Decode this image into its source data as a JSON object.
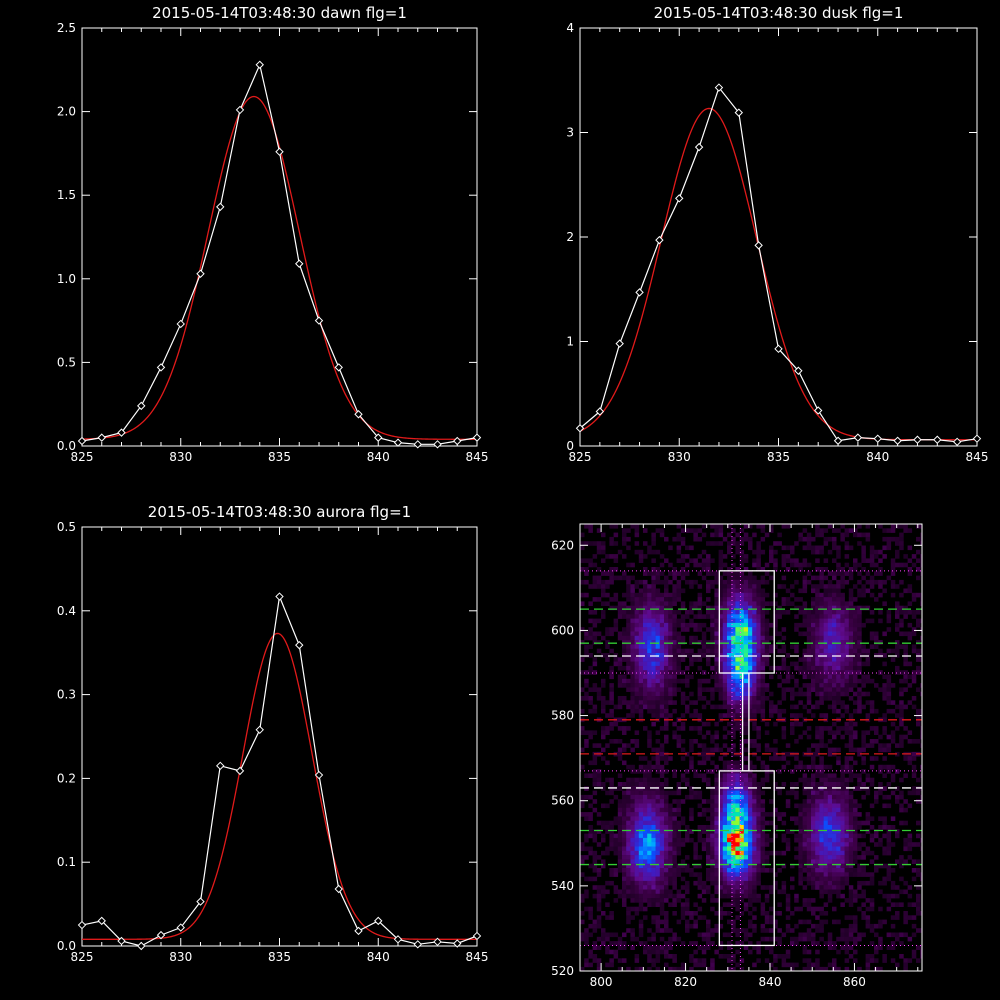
{
  "panels": [
    {
      "title": "2015-05-14T03:48:30 dawn flg=1",
      "xlim": [
        825,
        845
      ],
      "ylim": [
        0,
        2.5
      ],
      "xticks": [
        825,
        830,
        835,
        840,
        845
      ],
      "yticks": [
        0.0,
        0.5,
        1.0,
        1.5,
        2.0,
        2.5
      ],
      "ytick_labels": [
        "0.0",
        "0.5",
        "1.0",
        "1.5",
        "2.0",
        "2.5"
      ],
      "gauss": {
        "amp": 2.05,
        "center": 833.7,
        "sigma": 2.3,
        "offset": 0.04
      },
      "points": [
        [
          825,
          0.03
        ],
        [
          826,
          0.05
        ],
        [
          827,
          0.08
        ],
        [
          828,
          0.24
        ],
        [
          829,
          0.47
        ],
        [
          830,
          0.73
        ],
        [
          831,
          1.03
        ],
        [
          832,
          1.43
        ],
        [
          833,
          2.01
        ],
        [
          834,
          2.28
        ],
        [
          835,
          1.76
        ],
        [
          836,
          1.09
        ],
        [
          837,
          0.75
        ],
        [
          838,
          0.47
        ],
        [
          839,
          0.19
        ],
        [
          840,
          0.05
        ],
        [
          841,
          0.02
        ],
        [
          842,
          0.01
        ],
        [
          843,
          0.01
        ],
        [
          844,
          0.03
        ],
        [
          845,
          0.05
        ]
      ]
    },
    {
      "title": "2015-05-14T03:48:30 dusk flg=1",
      "xlim": [
        825,
        845
      ],
      "ylim": [
        0,
        4
      ],
      "xticks": [
        825,
        830,
        835,
        840,
        845
      ],
      "yticks": [
        0,
        1,
        2,
        3,
        4
      ],
      "ytick_labels": [
        "0",
        "1",
        "2",
        "3",
        "4"
      ],
      "gauss": {
        "amp": 3.17,
        "center": 831.5,
        "sigma": 2.4,
        "offset": 0.06
      },
      "points": [
        [
          825,
          0.17
        ],
        [
          826,
          0.33
        ],
        [
          827,
          0.98
        ],
        [
          828,
          1.47
        ],
        [
          829,
          1.97
        ],
        [
          830,
          2.37
        ],
        [
          831,
          2.86
        ],
        [
          832,
          3.43
        ],
        [
          833,
          3.19
        ],
        [
          834,
          1.92
        ],
        [
          835,
          0.93
        ],
        [
          836,
          0.72
        ],
        [
          837,
          0.34
        ],
        [
          838,
          0.05
        ],
        [
          839,
          0.08
        ],
        [
          840,
          0.07
        ],
        [
          841,
          0.05
        ],
        [
          842,
          0.06
        ],
        [
          843,
          0.06
        ],
        [
          844,
          0.04
        ],
        [
          845,
          0.07
        ]
      ]
    },
    {
      "title": "2015-05-14T03:48:30 aurora flg=1",
      "xlim": [
        825,
        845
      ],
      "ylim": [
        0,
        0.5
      ],
      "xticks": [
        825,
        830,
        835,
        840,
        845
      ],
      "yticks": [
        0.0,
        0.1,
        0.2,
        0.3,
        0.4,
        0.5
      ],
      "ytick_labels": [
        "0.0",
        "0.1",
        "0.2",
        "0.3",
        "0.4",
        "0.5"
      ],
      "gauss": {
        "amp": 0.365,
        "center": 834.9,
        "sigma": 1.75,
        "offset": 0.008
      },
      "points": [
        [
          825,
          0.025
        ],
        [
          826,
          0.03
        ],
        [
          827,
          0.006
        ],
        [
          828,
          0.0
        ],
        [
          829,
          0.013
        ],
        [
          830,
          0.022
        ],
        [
          831,
          0.053
        ],
        [
          832,
          0.215
        ],
        [
          833,
          0.209
        ],
        [
          834,
          0.258
        ],
        [
          835,
          0.417
        ],
        [
          836,
          0.359
        ],
        [
          837,
          0.204
        ],
        [
          838,
          0.068
        ],
        [
          839,
          0.018
        ],
        [
          840,
          0.03
        ],
        [
          841,
          0.008
        ],
        [
          842,
          0.002
        ],
        [
          843,
          0.005
        ],
        [
          844,
          0.003
        ],
        [
          845,
          0.012
        ]
      ]
    }
  ],
  "image_panel": {
    "xlim": [
      795,
      876
    ],
    "ylim": [
      520,
      625
    ],
    "xticks": [
      800,
      820,
      840,
      860
    ],
    "yticks": [
      520,
      540,
      560,
      580,
      600,
      620
    ],
    "blobs": [
      {
        "x": 832,
        "y": 550,
        "sx": 2.6,
        "sy": 5.0,
        "amp": 1.0
      },
      {
        "x": 832,
        "y": 560,
        "sx": 2.4,
        "sy": 4.0,
        "amp": 0.45
      },
      {
        "x": 833,
        "y": 598,
        "sx": 2.6,
        "sy": 6.0,
        "amp": 0.8
      },
      {
        "x": 833,
        "y": 588,
        "sx": 2.2,
        "sy": 4.0,
        "amp": 0.38
      },
      {
        "x": 811,
        "y": 550,
        "sx": 3.0,
        "sy": 6.0,
        "amp": 0.55
      },
      {
        "x": 812,
        "y": 596,
        "sx": 2.8,
        "sy": 6.5,
        "amp": 0.4
      },
      {
        "x": 854,
        "y": 552,
        "sx": 3.0,
        "sy": 6.0,
        "amp": 0.4
      },
      {
        "x": 855,
        "y": 597,
        "sx": 3.0,
        "sy": 6.0,
        "amp": 0.28
      }
    ],
    "green_dashed_y": [
      605,
      597,
      553,
      545
    ],
    "white_dashed_y": [
      594,
      563
    ],
    "red_dashed_y": [
      579,
      571
    ],
    "dotted_y": [
      614,
      590,
      567,
      526
    ],
    "dotted_x": [
      831,
      833
    ],
    "boxes": [
      [
        828,
        590,
        841,
        614
      ],
      [
        828,
        526,
        841,
        567
      ]
    ],
    "path": [
      [
        833.5,
        590
      ],
      [
        833.5,
        567
      ],
      [
        835,
        567
      ],
      [
        835,
        590
      ]
    ]
  },
  "colors": {
    "fit": "#e01a1a",
    "data": "#ffffff",
    "green": "#33cc33",
    "red": "#e01a1a",
    "magenta": "#ff44ff"
  }
}
